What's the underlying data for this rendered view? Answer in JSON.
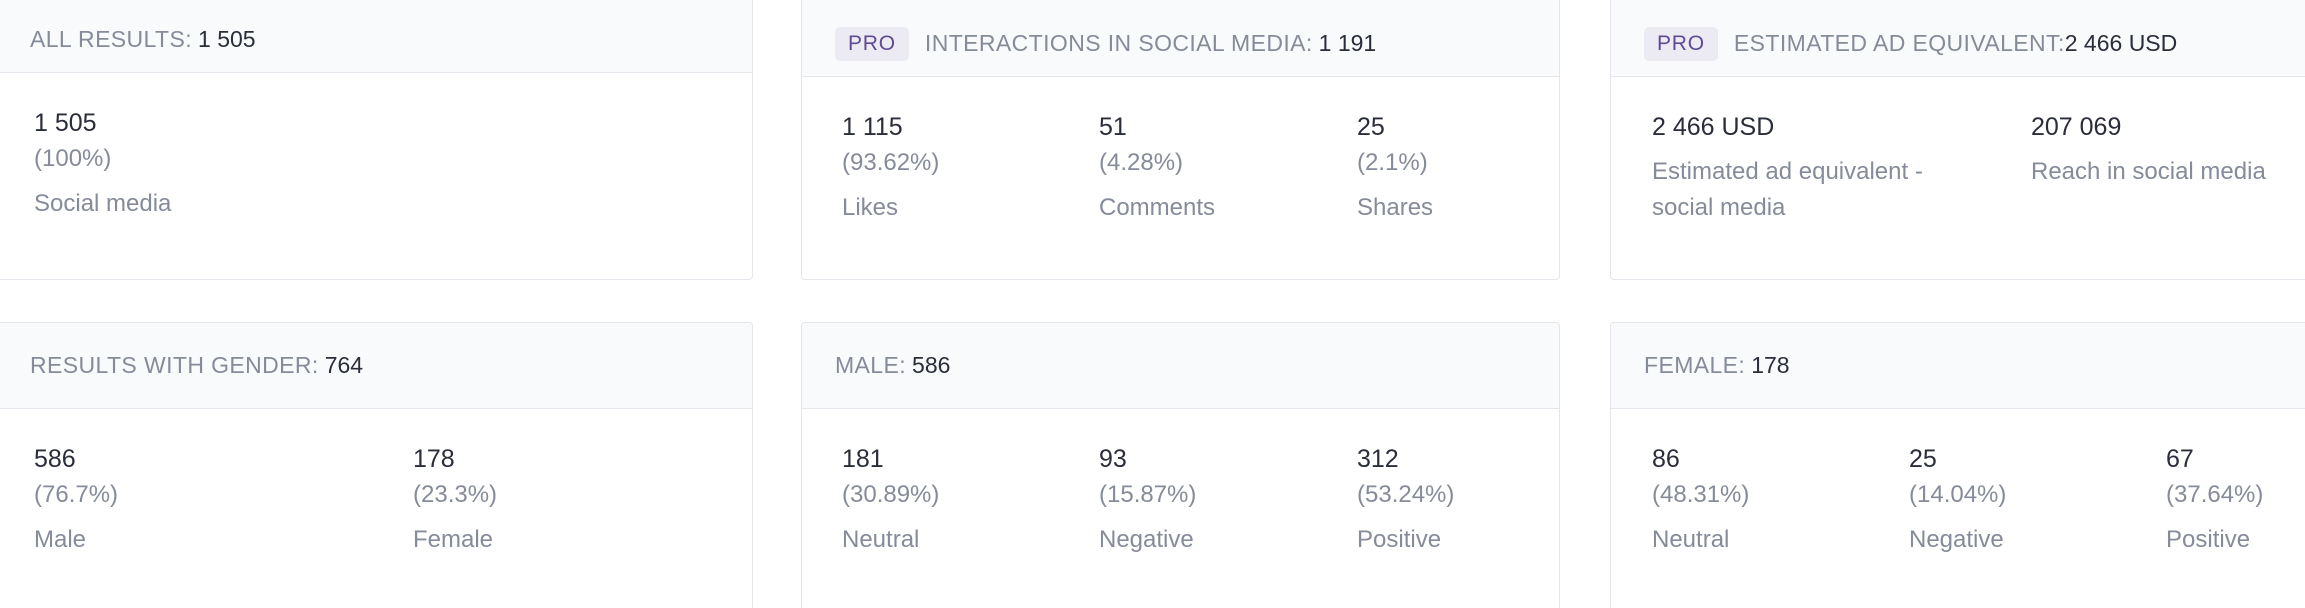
{
  "all_results": {
    "label": "ALL RESULTS:",
    "value": "1 505",
    "metrics": [
      {
        "value": "1 505",
        "percent": "(100%)",
        "label": "Social media"
      }
    ]
  },
  "interactions": {
    "badge": "PRO",
    "label": "INTERACTIONS IN SOCIAL MEDIA:",
    "value": "1 191",
    "metrics": [
      {
        "value": "1 115",
        "percent": "(93.62%)",
        "label": "Likes"
      },
      {
        "value": "51",
        "percent": "(4.28%)",
        "label": "Comments"
      },
      {
        "value": "25",
        "percent": "(2.1%)",
        "label": "Shares"
      }
    ]
  },
  "ad_equivalent": {
    "badge": "PRO",
    "label": "ESTIMATED AD EQUIVALENT:",
    "value": "2 466 USD",
    "metrics": [
      {
        "value": "2 466 USD",
        "label_line1": "Estimated ad equivalent -",
        "label_line2": "social media"
      },
      {
        "value": "207 069",
        "label_line1": "Reach in social media"
      }
    ]
  },
  "gender": {
    "label": "RESULTS WITH GENDER:",
    "value": "764",
    "metrics": [
      {
        "value": "586",
        "percent": "(76.7%)",
        "label": "Male"
      },
      {
        "value": "178",
        "percent": "(23.3%)",
        "label": "Female"
      }
    ]
  },
  "male": {
    "label": "MALE:",
    "value": "586",
    "metrics": [
      {
        "value": "181",
        "percent": "(30.89%)",
        "label": "Neutral"
      },
      {
        "value": "93",
        "percent": "(15.87%)",
        "label": "Negative"
      },
      {
        "value": "312",
        "percent": "(53.24%)",
        "label": "Positive"
      }
    ]
  },
  "female": {
    "label": "FEMALE:",
    "value": "178",
    "metrics": [
      {
        "value": "86",
        "percent": "(48.31%)",
        "label": "Neutral"
      },
      {
        "value": "25",
        "percent": "(14.04%)",
        "label": "Negative"
      },
      {
        "value": "67",
        "percent": "(37.64%)",
        "label": "Positive"
      }
    ]
  }
}
